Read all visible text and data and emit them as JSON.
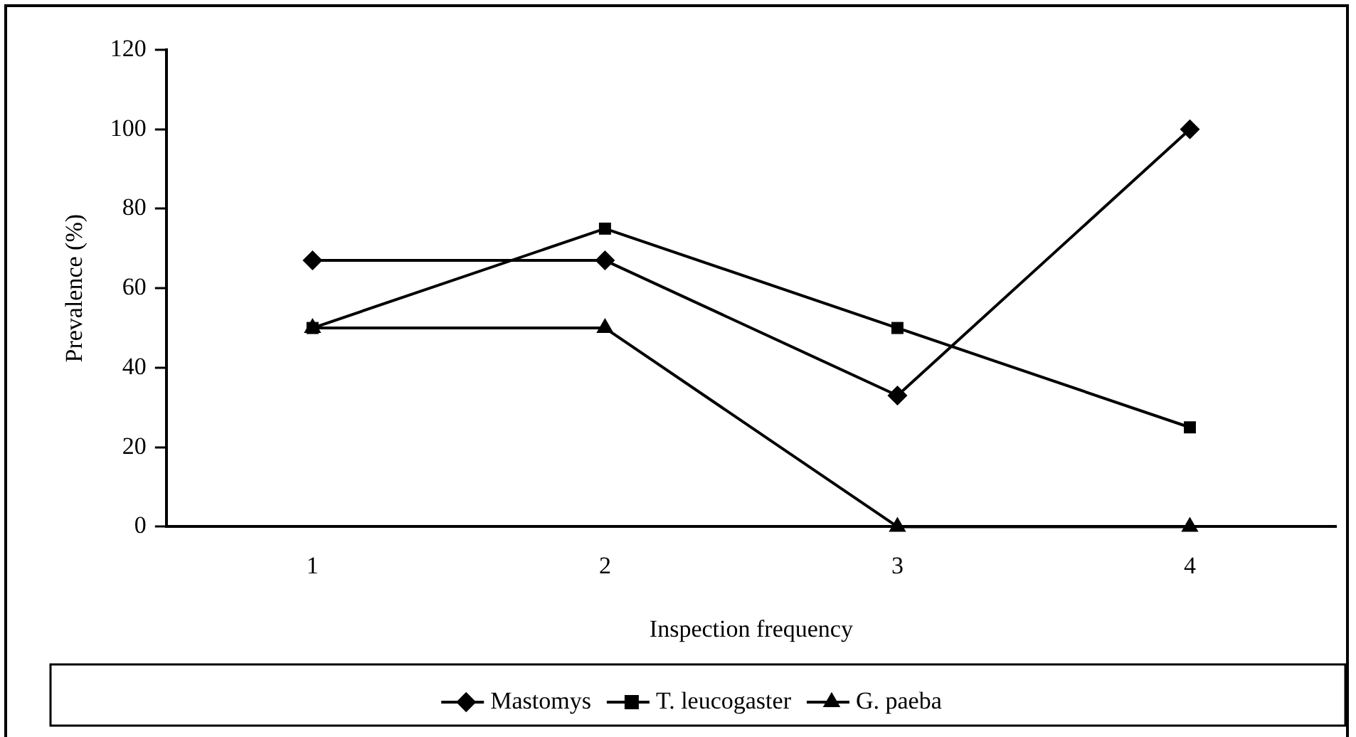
{
  "chart_data": {
    "type": "line",
    "xlabel": "Inspection frequency",
    "ylabel": "Prevalence (%)",
    "categories": [
      "1",
      "2",
      "3",
      "4"
    ],
    "ylim": [
      0,
      120
    ],
    "yticks": [
      0,
      20,
      40,
      60,
      80,
      100,
      120
    ],
    "grid": false,
    "legend": "bottom",
    "line_style": "solid",
    "series": [
      {
        "name": "Mastomys",
        "color": "#000000",
        "marker": "diamond",
        "values": [
          67,
          67,
          33,
          100
        ]
      },
      {
        "name": "T. leucogaster",
        "color": "#000000",
        "marker": "square",
        "values": [
          50,
          75,
          50,
          25
        ]
      },
      {
        "name": "G. paeba",
        "color": "#000000",
        "marker": "triangle",
        "values": [
          50,
          50,
          0,
          0
        ]
      }
    ]
  }
}
